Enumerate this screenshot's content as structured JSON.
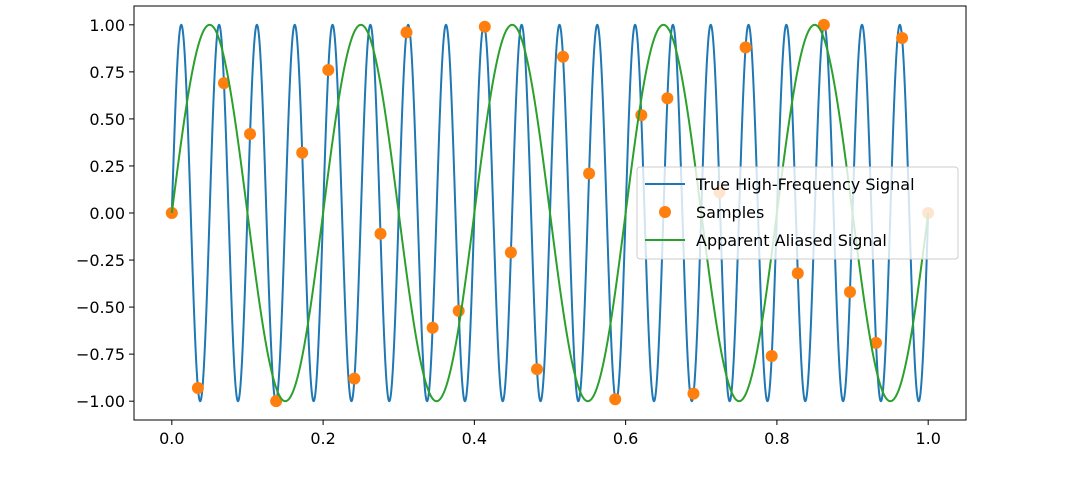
{
  "chart_data": {
    "type": "line",
    "title": "",
    "xlabel": "",
    "ylabel": "",
    "xlim": [
      -0.05,
      1.05
    ],
    "ylim": [
      -1.1,
      1.1
    ],
    "xticks": [
      0.0,
      0.2,
      0.4,
      0.6,
      0.8,
      1.0
    ],
    "xtick_labels": [
      "0.0",
      "0.2",
      "0.4",
      "0.6",
      "0.8",
      "1.0"
    ],
    "yticks": [
      1.0,
      0.75,
      0.5,
      0.25,
      0.0,
      -0.25,
      -0.5,
      -0.75,
      -1.0
    ],
    "ytick_labels": [
      "1.00",
      "0.75",
      "0.50",
      "0.25",
      "0.00",
      "−0.25",
      "−0.50",
      "−0.75",
      "−1.00"
    ],
    "grid": false,
    "legend_position": "center-right",
    "series": [
      {
        "name": "True High-Frequency Signal",
        "kind": "line",
        "color": "#1f77b4",
        "function": "sin(2*pi*20*x)",
        "frequency": 20,
        "x_range": [
          0,
          1
        ]
      },
      {
        "name": "Samples",
        "kind": "scatter",
        "color": "#ff7f0e",
        "x": [
          0.0,
          0.0345,
          0.069,
          0.1034,
          0.1379,
          0.1724,
          0.2069,
          0.2414,
          0.2759,
          0.3103,
          0.3448,
          0.3793,
          0.4138,
          0.4483,
          0.4828,
          0.5172,
          0.5517,
          0.5862,
          0.6207,
          0.6552,
          0.6897,
          0.7241,
          0.7586,
          0.7931,
          0.8276,
          0.8621,
          0.8966,
          0.931,
          0.9655,
          1.0
        ],
        "y": [
          0.0,
          -0.93,
          0.69,
          0.42,
          -1.0,
          0.32,
          0.76,
          -0.88,
          -0.11,
          0.96,
          -0.61,
          -0.52,
          0.99,
          -0.21,
          -0.83,
          0.83,
          0.21,
          -0.99,
          0.52,
          0.61,
          -0.96,
          0.11,
          0.88,
          -0.76,
          -0.32,
          1.0,
          -0.42,
          -0.69,
          0.93,
          0.0
        ]
      },
      {
        "name": "Apparent Aliased Signal",
        "kind": "line",
        "color": "#2ca02c",
        "function": "sin(2*pi*5*x)",
        "frequency": 5,
        "x_range": [
          0,
          1
        ]
      }
    ]
  }
}
